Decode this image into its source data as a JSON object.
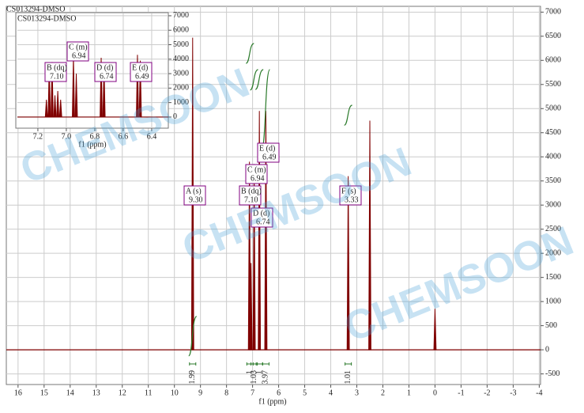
{
  "chart_data": [
    {
      "type": "nmr",
      "title": "CS013294-DMSO",
      "x_label": "f1 (ppm)",
      "color": "#800000",
      "integral_color": "#2a7a2a",
      "annotation_color": "#800080",
      "grid": true,
      "xlim": [
        16.45,
        -4.05
      ],
      "ylim": [
        -720,
        7120
      ],
      "xticks": [
        16,
        15,
        14,
        13,
        12,
        11,
        10,
        9,
        8,
        7,
        6,
        5,
        4,
        3,
        2,
        1,
        0,
        -1,
        -2,
        -3,
        -4
      ],
      "yticks": [
        -500,
        0,
        500,
        1000,
        1500,
        2000,
        2500,
        3000,
        3500,
        4000,
        4500,
        5000,
        5500,
        6000,
        6500,
        7000
      ],
      "peaks": {
        "x": [
          9.3,
          7.12,
          7.06,
          6.94,
          6.74,
          6.49,
          3.33,
          2.5,
          0
        ],
        "values": [
          6470,
          3900,
          1800,
          3850,
          4950,
          4950,
          3600,
          4750,
          850
        ]
      },
      "integrals": {
        "x": [
          9.3,
          7.1,
          6.94,
          6.74,
          6.49,
          3.33
        ],
        "values": [
          1.99,
          1.0,
          1.03,
          1.0,
          3.97,
          1.01
        ]
      },
      "annotations": [
        {
          "label": "A (s)",
          "shift": "9.30"
        },
        {
          "label": "B (dq)",
          "shift": "7.10"
        },
        {
          "label": "C (m)",
          "shift": "6.94"
        },
        {
          "label": "D (d)",
          "shift": "6.74"
        },
        {
          "label": "E (d)",
          "shift": "6.49"
        },
        {
          "label": "F (s)",
          "shift": "3.33"
        }
      ]
    },
    {
      "type": "nmr",
      "title": "CS013294-DMSO",
      "x_label": "f1 (ppm)",
      "color": "#800000",
      "annotation_color": "#800080",
      "grid": true,
      "xlim": [
        7.344,
        6.283
      ],
      "ylim": [
        -770,
        7160
      ],
      "xticks": [
        {
          "value": 7.2,
          "label": "7.2"
        },
        {
          "value": 7.0,
          "label": "7.0"
        },
        {
          "value": 6.8,
          "label": "6.8"
        },
        {
          "value": 6.6,
          "label": "6.6"
        },
        {
          "value": 6.4,
          "label": "6.4"
        }
      ],
      "yticks": [
        0,
        1000,
        2000,
        3000,
        4000,
        5000,
        6000,
        7000
      ],
      "peaks": {
        "x": [
          7.14,
          7.12,
          7.1,
          7.08,
          7.06,
          7.04,
          6.95,
          6.93,
          6.755,
          6.735,
          6.5,
          6.48
        ],
        "values": [
          1200,
          3700,
          3800,
          1500,
          1800,
          1200,
          4200,
          3000,
          4100,
          3600,
          4300,
          3900
        ]
      },
      "annotations": [
        {
          "label": "B (dq)",
          "shift": "7.10"
        },
        {
          "label": "C (m)",
          "shift": "6.94"
        },
        {
          "label": "D (d)",
          "shift": "6.74"
        },
        {
          "label": "E (d)",
          "shift": "6.49"
        }
      ]
    }
  ]
}
